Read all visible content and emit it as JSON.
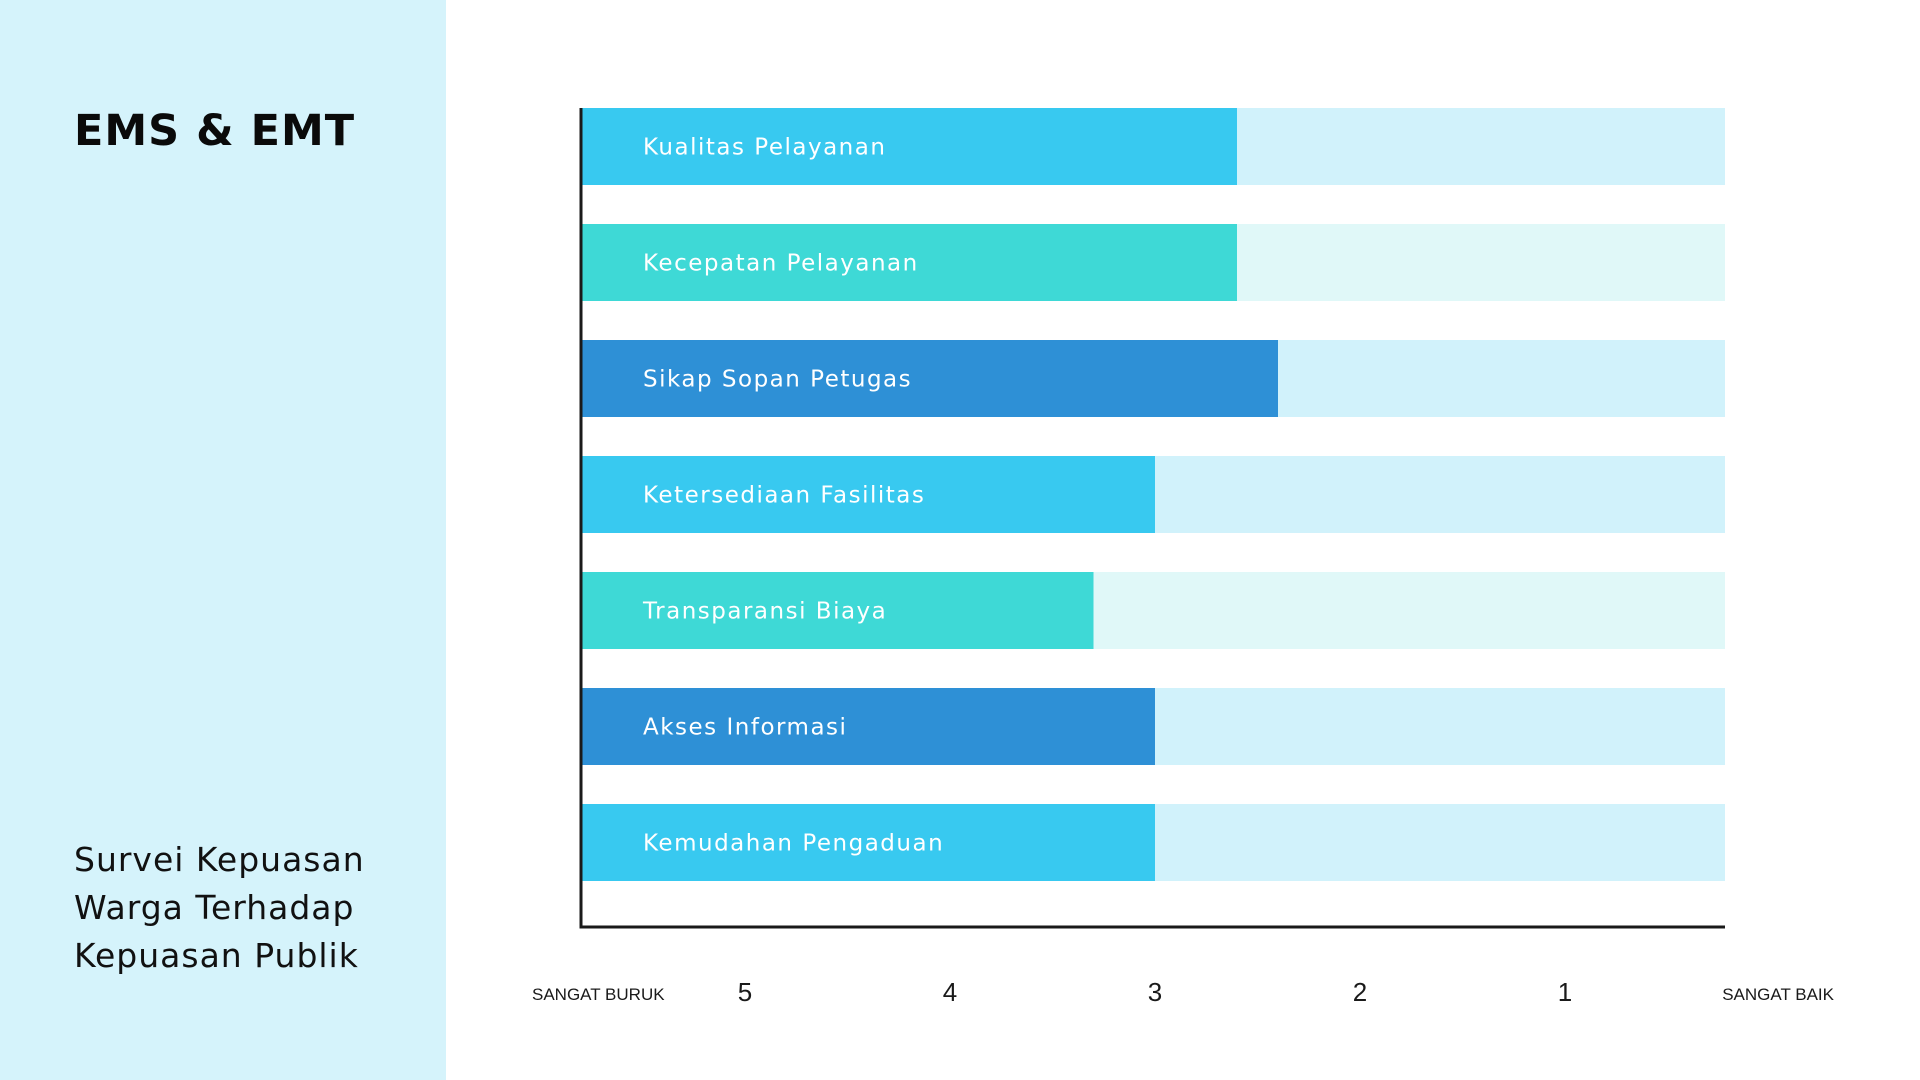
{
  "sidebar": {
    "title": "EMS & EMT",
    "subtitle_lines": [
      "Survei Kepuasan",
      "Warga Terhadap",
      "Kepuasan Publik"
    ]
  },
  "chart_data": {
    "type": "bar",
    "orientation": "horizontal",
    "categories": [
      "Kualitas Pelayanan",
      "Kecepatan Pelayanan",
      "Sikap Sopan Petugas",
      "Ketersediaan Fasilitas",
      "Transparansi Biaya",
      "Akses Informasi",
      "Kemudahan Pengaduan"
    ],
    "values": [
      2.6,
      2.6,
      2.4,
      3.0,
      3.3,
      3.0,
      3.0
    ],
    "x_ticks": [
      "5",
      "4",
      "3",
      "2",
      "1"
    ],
    "x_end_labels": {
      "left": "SANGAT BURUK",
      "right": "SANGAT BAIK"
    },
    "xlim": [
      5.8,
      0.2
    ],
    "grid": false,
    "colors": {
      "bars": [
        "#38c9f0",
        "#3ed9d6",
        "#2e90d6",
        "#38c9f0",
        "#3ed9d6",
        "#2e90d6",
        "#38c9f0"
      ],
      "tracks": [
        "#d1f2fb",
        "#e0f8f8",
        "#d1f2fb",
        "#d1f2fb",
        "#e0f8f8",
        "#d1f2fb",
        "#d1f2fb"
      ],
      "axis": "#1a1a1a"
    }
  }
}
